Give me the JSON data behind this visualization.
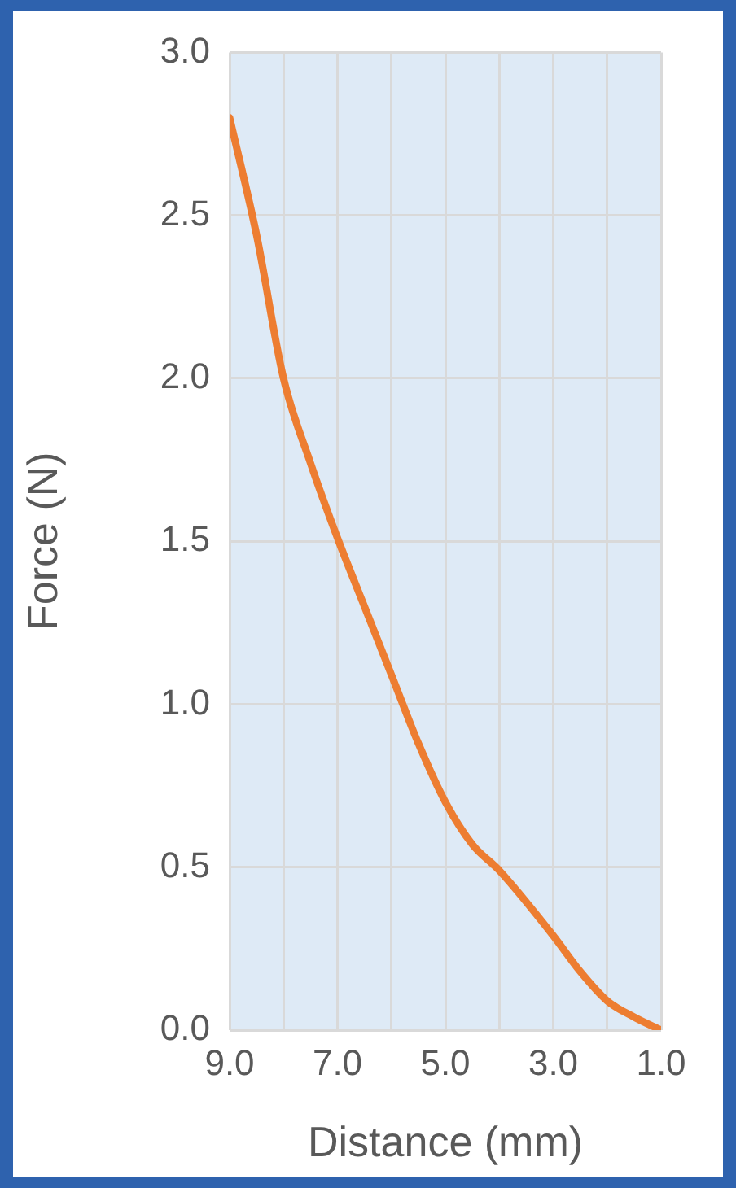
{
  "chart_data": {
    "type": "line",
    "xlabel": "Distance (mm)",
    "ylabel": "Force (N)",
    "x": [
      9,
      8.5,
      8,
      7.5,
      7,
      6.5,
      6,
      5.5,
      5,
      4.5,
      4,
      3,
      2.5,
      2,
      1.5,
      1
    ],
    "series": [
      {
        "color": "#ed7d31",
        "values": [
          2.8,
          2.44,
          2.0,
          1.74,
          1.51,
          1.3,
          1.09,
          0.88,
          0.7,
          0.57,
          0.49,
          0.29,
          0.18,
          0.09,
          0.04,
          0
        ]
      }
    ],
    "xlim": [
      9,
      1
    ],
    "xticks": [
      {
        "value": 9,
        "label": "9.0"
      },
      {
        "value": 8,
        "label": null
      },
      {
        "value": 7,
        "label": "7.0"
      },
      {
        "value": 6,
        "label": null
      },
      {
        "value": 5,
        "label": "5.0"
      },
      {
        "value": 4,
        "label": null
      },
      {
        "value": 3,
        "label": "3.0"
      },
      {
        "value": 2,
        "label": null
      },
      {
        "value": 1,
        "label": "1.0"
      }
    ],
    "ylim": [
      0,
      3
    ],
    "yticks": [
      {
        "value": 0,
        "label": "0.0"
      },
      0.5,
      {
        "value": 1,
        "label": "1.0"
      },
      1.5,
      {
        "value": 2,
        "label": "2.0"
      },
      2.5,
      {
        "value": 3,
        "label": "3.0"
      }
    ],
    "grid": true,
    "legend": false,
    "marker": "none",
    "line_style": "solid"
  }
}
